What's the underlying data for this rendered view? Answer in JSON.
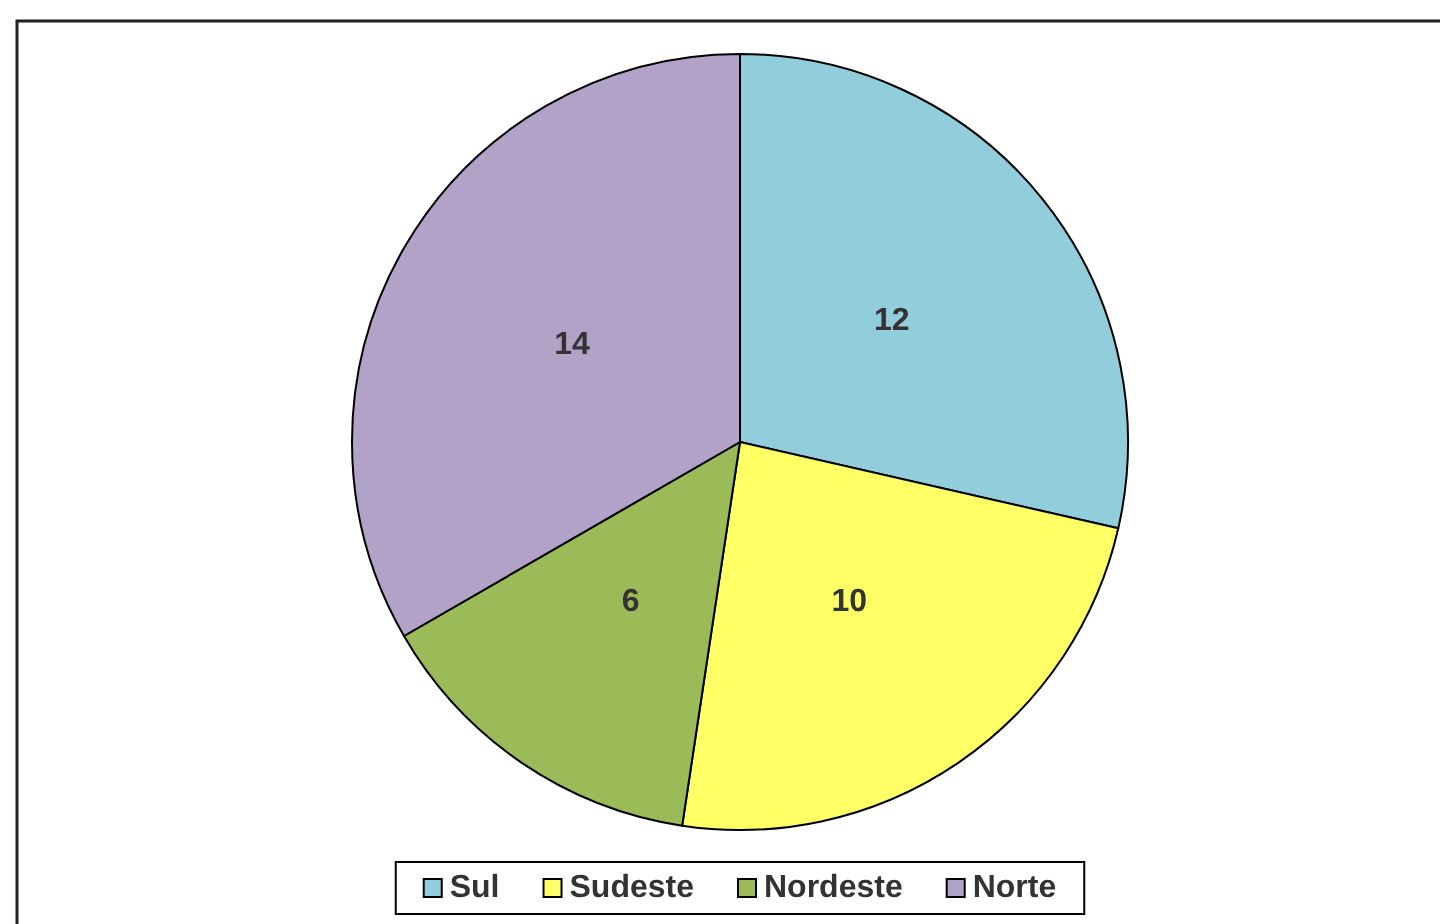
{
  "chart_data": {
    "type": "pie",
    "categories": [
      "Sul",
      "Sudeste",
      "Nordeste",
      "Norte"
    ],
    "values": [
      12,
      10,
      6,
      14
    ],
    "colors": [
      "#92cddc",
      "#ffff66",
      "#9bbb59",
      "#b3a2c7"
    ],
    "data_labels": true,
    "legend": "bottom"
  }
}
